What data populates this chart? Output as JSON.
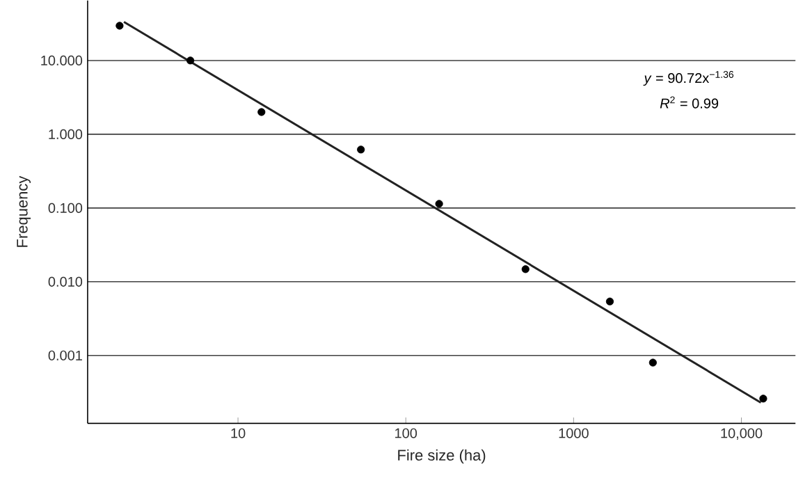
{
  "chart_data": {
    "type": "scatter",
    "xlabel": "Fire size (ha)",
    "ylabel": "Frequency",
    "log": "xy",
    "grid": "y",
    "marker": "circle",
    "xlim": [
      1.27,
      21000
    ],
    "ylim": [
      0.00012,
      65
    ],
    "xticks": [
      10,
      100,
      1000,
      {
        "value": 10000,
        "label": "10,000"
      }
    ],
    "yticks": [
      {
        "value": 0.001,
        "label": "0.001"
      },
      {
        "value": 0.01,
        "label": "0.010"
      },
      {
        "value": 0.1,
        "label": "0.100"
      },
      {
        "value": 1,
        "label": "1.000"
      },
      {
        "value": 10,
        "label": "10.000"
      }
    ],
    "annotations": [
      "*y* = 90.72x$^{−1.36}$",
      "*R*$^{2}$ = 0.99"
    ],
    "series": [
      {
        "color": "#000000",
        "x": [
          1.97,
          5.2,
          13.8,
          54,
          158,
          517,
          1645,
          2970,
          13500
        ],
        "values": [
          29.6,
          10,
          2.0,
          0.62,
          0.114,
          0.0148,
          0.0054,
          0.0008,
          0.00026
        ]
      },
      {
        "type": "line",
        "color": "#222222",
        "marker": "none",
        "x": [
          2.09,
          13060
        ],
        "values": [
          33.3,
          0.00023
        ]
      }
    ]
  }
}
